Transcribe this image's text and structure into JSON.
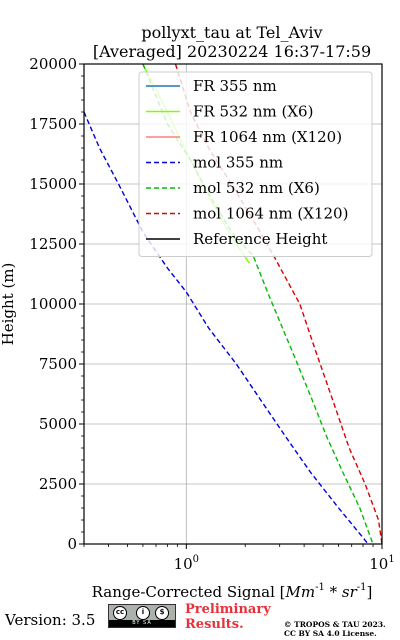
{
  "chart_data": {
    "type": "line",
    "title": "pollyxt_tau at Tel_Aviv",
    "subtitle": "[Averaged] 20230224 16:37-17:59",
    "xlabel": "Range-Corrected Signal [Mm^-1 * sr^-1]",
    "ylabel": "Height (m)",
    "xscale": "log",
    "xlim": [
      0.3,
      10
    ],
    "ylim": [
      0,
      20000
    ],
    "x_ticks": [
      {
        "value": 1,
        "label": "10^0"
      },
      {
        "value": 10,
        "label": "10^1"
      }
    ],
    "y_ticks": [
      0,
      2500,
      5000,
      7500,
      10000,
      12500,
      15000,
      17500,
      20000
    ],
    "y_tick_labels": [
      "0",
      "2500",
      "5000",
      "7500",
      "10000",
      "12500",
      "15000",
      "17500",
      "20000"
    ],
    "grid": true,
    "legend_position": "top-right",
    "series": [
      {
        "name": "FR 355 nm",
        "color": "#1f77b4",
        "style": "solid",
        "points": []
      },
      {
        "name": "FR 532 nm (X6)",
        "color": "#80ff00",
        "style": "solid",
        "points": [
          [
            0.6,
            20000
          ],
          [
            0.8,
            18000
          ],
          [
            1.05,
            16000
          ],
          [
            1.3,
            14500
          ],
          [
            1.7,
            12800
          ],
          [
            2.1,
            11700
          ]
        ]
      },
      {
        "name": "FR 1064 nm (X120)",
        "color": "#ff7f7f",
        "style": "solid",
        "points": []
      },
      {
        "name": "mol 355 nm",
        "color": "#0000dd",
        "style": "dashed",
        "points": [
          [
            0.3,
            18000
          ],
          [
            0.36,
            16500
          ],
          [
            0.45,
            15000
          ],
          [
            0.6,
            13000
          ],
          [
            0.8,
            11500
          ],
          [
            1.0,
            10500
          ],
          [
            1.3,
            9000
          ],
          [
            1.8,
            7500
          ],
          [
            2.4,
            6000
          ],
          [
            3.2,
            4500
          ],
          [
            4.3,
            3000
          ],
          [
            6.0,
            1500
          ],
          [
            8.5,
            0
          ]
        ]
      },
      {
        "name": "mol 532 nm (X6)",
        "color": "#00bb00",
        "style": "dashed",
        "points": [
          [
            0.6,
            20000
          ],
          [
            0.8,
            17500
          ],
          [
            1.05,
            16000
          ],
          [
            1.3,
            14600
          ],
          [
            1.7,
            13000
          ],
          [
            2.2,
            12000
          ],
          [
            2.6,
            10500
          ],
          [
            3.1,
            9000
          ],
          [
            3.7,
            7500
          ],
          [
            4.4,
            6000
          ],
          [
            5.2,
            4500
          ],
          [
            6.3,
            3000
          ],
          [
            7.7,
            1500
          ],
          [
            9.0,
            0
          ]
        ]
      },
      {
        "name": "mol 1064 nm (X120)",
        "color": "#dd0000",
        "style": "dashed",
        "points": [
          [
            0.88,
            20000
          ],
          [
            1.05,
            18000
          ],
          [
            1.3,
            16500
          ],
          [
            1.7,
            15000
          ],
          [
            2.2,
            13500
          ],
          [
            2.8,
            12000
          ],
          [
            3.8,
            10000
          ],
          [
            4.6,
            8000
          ],
          [
            5.6,
            6000
          ],
          [
            6.8,
            4000
          ],
          [
            8.2,
            2500
          ],
          [
            9.6,
            1000
          ],
          [
            10.0,
            0
          ]
        ]
      },
      {
        "name": "Reference Height",
        "color": "#000000",
        "style": "solid",
        "points": []
      }
    ]
  },
  "footer": {
    "version": "Version: 3.5",
    "badge_labels": [
      "cc",
      "i",
      "$"
    ],
    "badge_bar": "BY   SA",
    "preliminary_line1": "Preliminary",
    "preliminary_line2": "Results.",
    "copyright_line1": "© TROPOS & TAU 2023.",
    "copyright_line2": "CC BY SA 4.0 License."
  }
}
